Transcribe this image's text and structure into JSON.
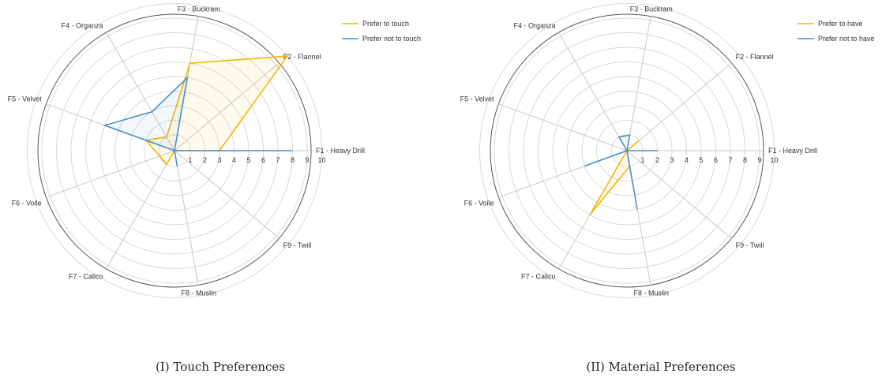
{
  "captions": {
    "left": "(I) Touch Preferences",
    "right": "(II) Material Preferences"
  },
  "chart_data": [
    {
      "type": "radar",
      "caption": "(I) Touch Preferences",
      "axes": [
        "F1 - Heavy Drill",
        "F2 - Flannel",
        "F3 - Buckram",
        "F4 - Organza",
        "F5 - Velvet",
        "F6 - Voile",
        "F7 - Calico",
        "F8 - Muslin",
        "F9 - Twill"
      ],
      "r_ticks": [
        1,
        2,
        3,
        4,
        5,
        6,
        7,
        8,
        9,
        10
      ],
      "r_range": [
        0,
        10
      ],
      "legend_position": "top-right",
      "series": [
        {
          "name": "Prefer to touch",
          "color": "#f2b705",
          "values": [
            3,
            10,
            6,
            1,
            2,
            1,
            1,
            0,
            0
          ]
        },
        {
          "name": "Prefer not to touch",
          "color": "#4a90c8",
          "values": [
            8,
            0,
            5,
            3,
            5,
            0,
            0,
            1,
            0
          ]
        }
      ]
    },
    {
      "type": "radar",
      "caption": "(II) Material Preferences",
      "axes": [
        "F1 - Heavy Drill",
        "F2 - Flannel",
        "F3 - Buckram",
        "F4 - Organza",
        "F5 - Velvet",
        "F6 - Voile",
        "F7 - Calico",
        "F8 - Muslin",
        "F9 - Twill"
      ],
      "r_ticks": [
        1,
        2,
        3,
        4,
        5,
        6,
        7,
        8,
        9,
        10
      ],
      "r_range": [
        0,
        10
      ],
      "legend_position": "top-right",
      "series": [
        {
          "name": "Prefer to have",
          "color": "#f2b705",
          "values": [
            0,
            1,
            0,
            0,
            0,
            0,
            5,
            1,
            0
          ]
        },
        {
          "name": "Prefer not to have",
          "color": "#4a90c8",
          "values": [
            2,
            0,
            1,
            1,
            0,
            3,
            0,
            4,
            0
          ]
        }
      ]
    }
  ]
}
